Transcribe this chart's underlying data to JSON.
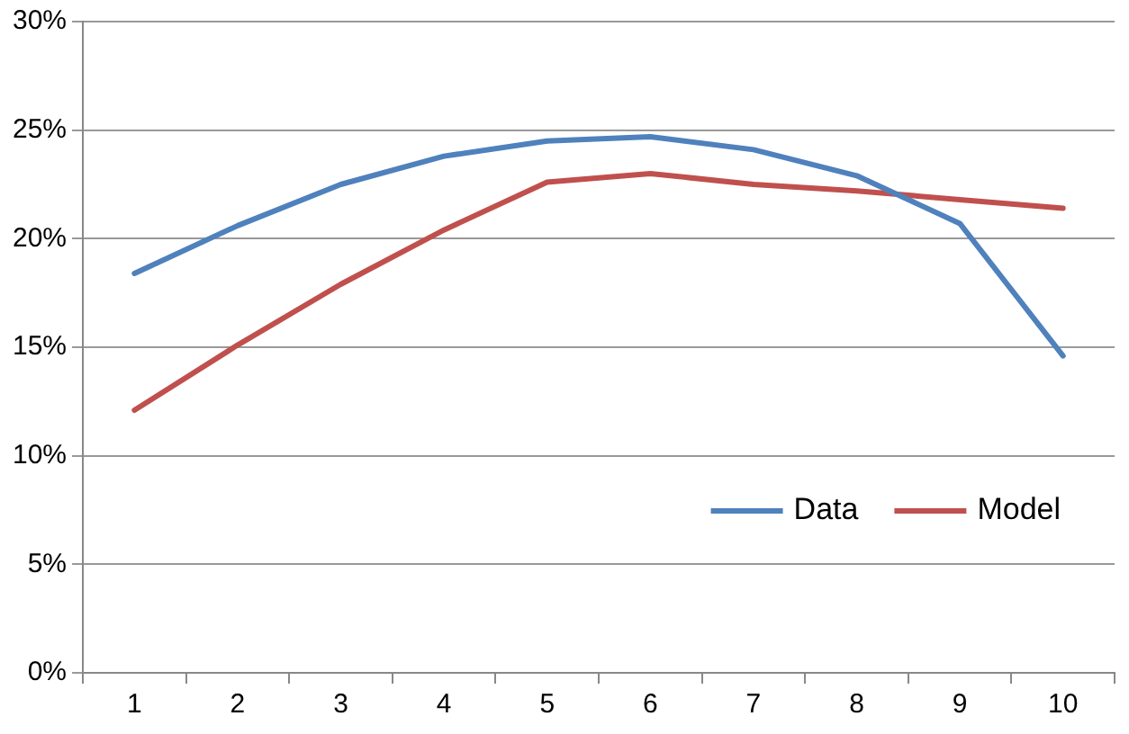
{
  "chart_data": {
    "type": "line",
    "categories": [
      "1",
      "2",
      "3",
      "4",
      "5",
      "6",
      "7",
      "8",
      "9",
      "10"
    ],
    "series": [
      {
        "name": "Data",
        "color": "#4f81bd",
        "values": [
          18.4,
          20.6,
          22.5,
          23.8,
          24.5,
          24.7,
          24.1,
          22.9,
          20.7,
          14.6
        ]
      },
      {
        "name": "Model",
        "color": "#c0504d",
        "values": [
          12.1,
          15.1,
          17.9,
          20.4,
          22.6,
          23.0,
          22.5,
          22.2,
          21.8,
          21.4
        ]
      }
    ],
    "ylim": [
      0,
      30
    ],
    "yticks": [
      {
        "value": 0,
        "label": "0%"
      },
      {
        "value": 5,
        "label": "5%"
      },
      {
        "value": 10,
        "label": "10%"
      },
      {
        "value": 15,
        "label": "15%"
      },
      {
        "value": 20,
        "label": "20%"
      },
      {
        "value": 25,
        "label": "25%"
      },
      {
        "value": 30,
        "label": "30%"
      }
    ],
    "grid": "y",
    "legend": "bottom right",
    "marker": "none",
    "line_style": "solid"
  }
}
